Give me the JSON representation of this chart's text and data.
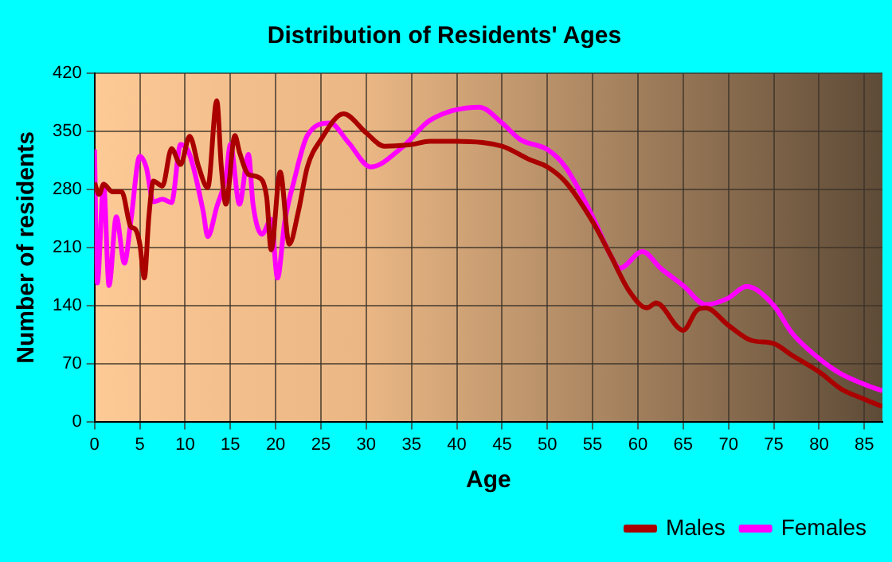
{
  "chart_data": {
    "type": "line",
    "title": "Distribution of Residents' Ages",
    "xlabel": "Age",
    "ylabel": "Number of residents",
    "xlim": [
      0,
      87
    ],
    "xticks": [
      0,
      5,
      10,
      15,
      20,
      25,
      30,
      35,
      40,
      45,
      50,
      55,
      60,
      65,
      70,
      75,
      80,
      85
    ],
    "ylim": [
      0,
      420
    ],
    "yticks": [
      0,
      70,
      140,
      210,
      280,
      350,
      420
    ],
    "grid": true,
    "legend": "bottom right",
    "marker": "none",
    "line_style": "solid",
    "series": [
      {
        "name": "Males",
        "color": "#aa0000",
        "x": [
          0,
          0.5,
          1,
          2,
          3,
          4,
          4.5,
          5,
          5.5,
          6,
          6.5,
          7.5,
          8.5,
          9.5,
          10.5,
          11.5,
          12.5,
          13.5,
          14,
          14.5,
          15.5,
          16,
          17,
          18,
          19,
          19.5,
          20.5,
          21.5,
          22.5,
          23.5,
          25,
          27.5,
          30,
          32,
          35,
          37,
          40,
          45,
          48,
          50,
          52,
          55,
          57,
          59,
          61,
          62,
          65,
          66.5,
          67.5,
          70,
          72.5,
          75,
          77,
          80,
          82.5,
          85,
          87
        ],
        "values": [
          288,
          274,
          286,
          277,
          277,
          235,
          232,
          214,
          173,
          247,
          290,
          284,
          329,
          310,
          344,
          307,
          282,
          387,
          307,
          262,
          345,
          325,
          298,
          295,
          271,
          207,
          301,
          214,
          253,
          307,
          340,
          371,
          348,
          332,
          334,
          338,
          338,
          332,
          316,
          307,
          289,
          241,
          200,
          158,
          137,
          143,
          110,
          134,
          137,
          116,
          98,
          94,
          80,
          60,
          39,
          27,
          18
        ]
      },
      {
        "name": "Females",
        "color": "#ff00ff",
        "x": [
          0,
          0.3,
          1,
          1.6,
          2.4,
          3.3,
          4,
          5,
          5.7,
          6.5,
          7.5,
          8.5,
          9.5,
          10.5,
          12,
          12.5,
          13.5,
          14.5,
          15,
          16,
          17,
          17.5,
          18.5,
          19.5,
          20.2,
          21,
          22,
          23.5,
          26,
          28,
          30.5,
          34,
          37,
          42.5,
          45,
          47,
          50,
          52,
          55,
          57,
          58,
          60.5,
          62.5,
          65,
          67.5,
          70,
          72,
          75,
          77,
          80,
          82.5,
          85,
          87
        ],
        "values": [
          328,
          167,
          286,
          164,
          247,
          191,
          241,
          320,
          307,
          265,
          268,
          264,
          334,
          322,
          253,
          223,
          259,
          295,
          334,
          262,
          322,
          262,
          226,
          244,
          173,
          241,
          289,
          345,
          360,
          337,
          307,
          331,
          363,
          379,
          360,
          340,
          328,
          307,
          247,
          200,
          185,
          205,
          185,
          164,
          141,
          149,
          163,
          140,
          107,
          76,
          57,
          45,
          37
        ]
      }
    ]
  }
}
